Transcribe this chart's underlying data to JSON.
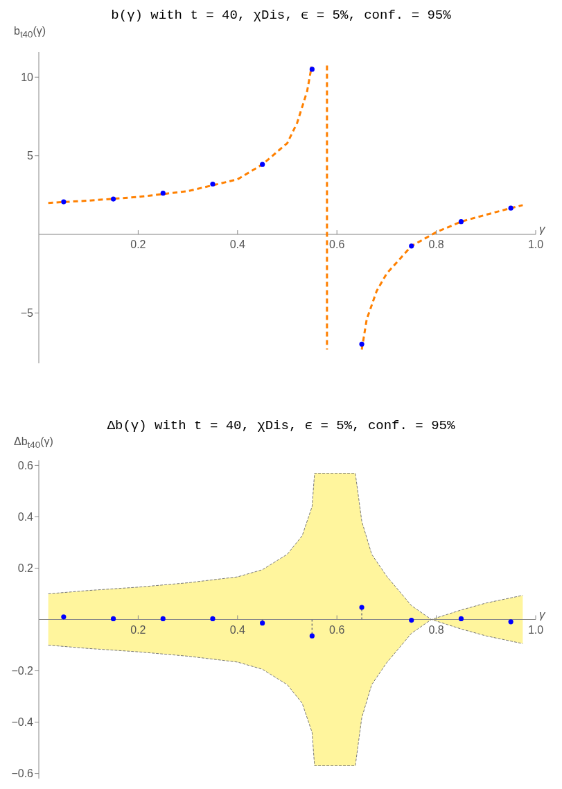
{
  "chart_data": [
    {
      "type": "line",
      "title": "b(γ) with t = 40, χDis, ϵ = 5%, conf. = 95%",
      "xlabel": "γ",
      "ylabel": "b$_{t40}$(γ)",
      "xlim": [
        0,
        1
      ],
      "ylim": [
        -8.2,
        11.6
      ],
      "xticks": [
        0.2,
        0.4,
        0.6,
        0.8,
        {
          "value": 1,
          "label": "1.0"
        }
      ],
      "yticks": [
        -5,
        5,
        10
      ],
      "series": [
        {
          "color": "#ff8000",
          "line_style": "dashed",
          "marker": "none",
          "x": [
            0.019,
            0.1,
            0.2,
            0.3,
            0.4,
            0.45,
            0.5,
            0.52,
            0.54,
            0.549,
            0.565,
            0.58,
            0.58,
            0.615,
            0.65,
            0.66,
            0.68,
            0.7,
            0.75,
            0.8,
            0.85,
            0.9,
            0.95,
            0.974
          ],
          "values": [
            2.0,
            2.15,
            2.38,
            2.75,
            3.5,
            4.45,
            5.8,
            7.1,
            9.1,
            10.67,
            null,
            10.74,
            -7.33,
            null,
            -7.33,
            -5.4,
            -3.6,
            -2.5,
            -0.74,
            0.14,
            0.81,
            1.25,
            1.67,
            1.86
          ]
        },
        {
          "type": "scatter",
          "color": "#0000ff",
          "marker": "circle",
          "x": [
            0.05,
            0.15,
            0.25,
            0.35,
            0.45,
            0.55,
            0.65,
            0.75,
            0.85,
            0.95
          ],
          "values": [
            2.07,
            2.25,
            2.62,
            3.2,
            4.45,
            10.5,
            -6.98,
            -0.74,
            0.81,
            1.67
          ]
        }
      ]
    },
    {
      "type": "lollipop",
      "title": "Δb(γ) with t = 40, χDis, ϵ = 5%, conf. = 95%",
      "xlabel": "γ",
      "ylabel": "Δb$_{t40}$(γ)",
      "xlim": [
        0,
        1
      ],
      "ylim": [
        -0.62,
        0.62
      ],
      "xticks": [
        0.2,
        0.4,
        0.6,
        0.8,
        {
          "value": 1,
          "label": "1.0"
        }
      ],
      "yticks": [
        -0.6,
        -0.4,
        -0.2,
        0.2,
        0.4,
        0.6
      ],
      "series": [
        {
          "type": "line",
          "color": "#777777",
          "line_style": "dashed",
          "x": [
            0.019,
            0.1,
            0.2,
            0.3,
            0.4,
            0.45,
            0.5,
            0.53,
            0.55,
            0.555,
            0.637,
            0.65,
            0.67,
            0.7,
            0.75,
            0.79,
            0.85,
            0.9,
            0.974
          ],
          "values": [
            -0.1,
            -0.113,
            -0.126,
            -0.143,
            -0.166,
            -0.194,
            -0.254,
            -0.326,
            -0.44,
            -0.57,
            -0.57,
            -0.383,
            -0.254,
            -0.169,
            -0.054,
            0,
            -0.037,
            -0.064,
            -0.094
          ]
        },
        {
          "type": "line",
          "color": "#777777",
          "line_style": "dashed",
          "x": [
            0.019,
            0.1,
            0.2,
            0.3,
            0.4,
            0.45,
            0.5,
            0.53,
            0.55,
            0.555,
            0.637,
            0.65,
            0.67,
            0.7,
            0.75,
            0.79,
            0.85,
            0.9,
            0.974
          ],
          "values": [
            0.1,
            0.113,
            0.126,
            0.143,
            0.166,
            0.194,
            0.254,
            0.326,
            0.44,
            0.57,
            0.57,
            0.383,
            0.254,
            0.169,
            0.054,
            0,
            0.037,
            0.064,
            0.094
          ],
          "upper": [
            0.1,
            0.113,
            0.126,
            0.143,
            0.166,
            0.194,
            0.254,
            0.326,
            0.44,
            0.57,
            0.57,
            0.383,
            0.254,
            0.169,
            0.054,
            0,
            0.037,
            0.064,
            0.094
          ],
          "lower": [
            -0.1,
            -0.113,
            -0.126,
            -0.143,
            -0.166,
            -0.194,
            -0.254,
            -0.326,
            -0.44,
            -0.57,
            -0.57,
            -0.383,
            -0.254,
            -0.169,
            -0.054,
            0,
            -0.037,
            -0.064,
            -0.094
          ]
        },
        {
          "color": "#0000ff",
          "marker": "circle",
          "line_style": "dashed",
          "x": [
            0.05,
            0.15,
            0.25,
            0.35,
            0.45,
            0.55,
            0.65,
            0.75,
            0.85,
            0.95
          ],
          "values": [
            0.01,
            0.003,
            0.003,
            0.003,
            -0.014,
            -0.064,
            0.047,
            -0.003,
            0.003,
            -0.009
          ]
        }
      ]
    }
  ]
}
